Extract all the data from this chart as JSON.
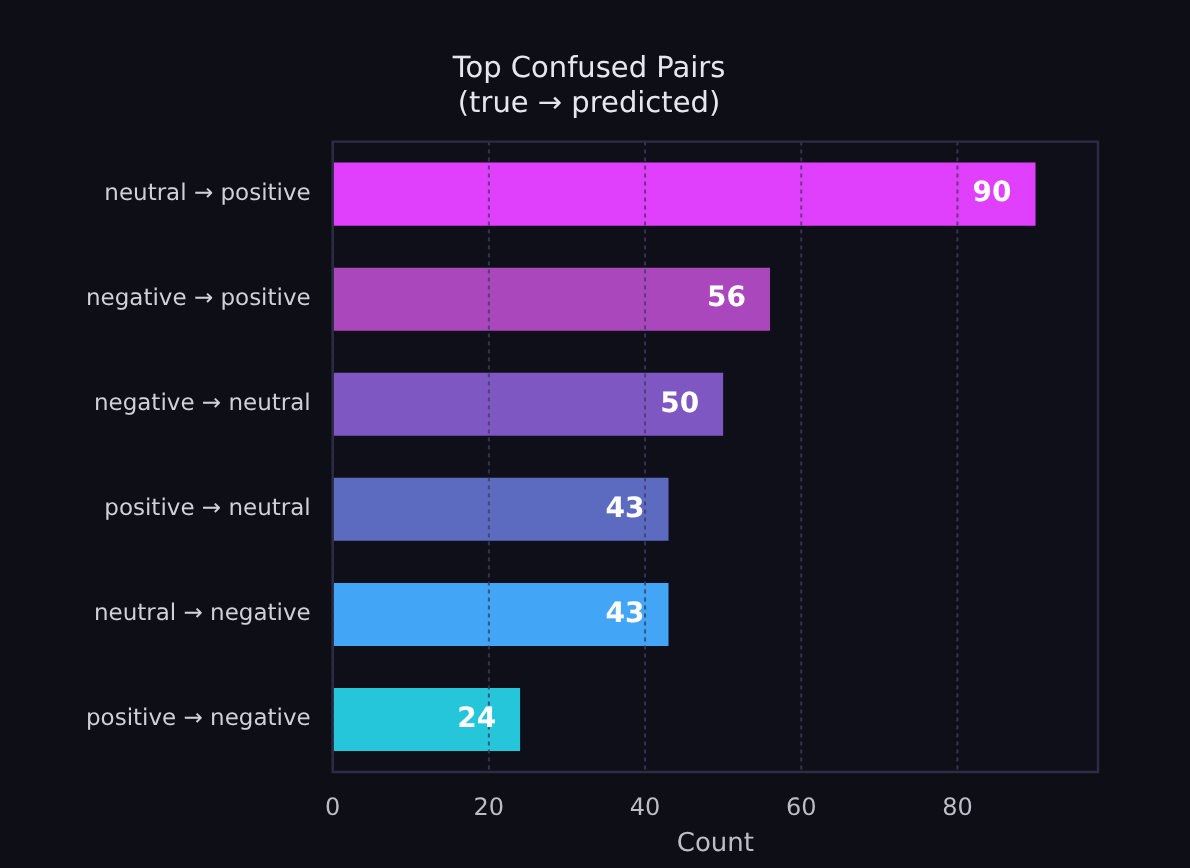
{
  "chart_data": {
    "type": "bar",
    "orientation": "horizontal",
    "title": "Top Confused Pairs\n(true → predicted)",
    "xlabel": "Count",
    "categories": [
      "neutral → positive",
      "negative → positive",
      "negative → neutral",
      "positive → neutral",
      "neutral → negative",
      "positive → negative"
    ],
    "values": [
      90,
      56,
      50,
      43,
      43,
      24
    ],
    "colors": [
      "#e040fb",
      "#ab47bc",
      "#7e57c2",
      "#5c6bc0",
      "#42a5f5",
      "#26c6da"
    ],
    "xlim": [
      0,
      98
    ],
    "xticks": [
      0,
      20,
      40,
      60,
      80
    ],
    "grid": "x",
    "data_labels": true,
    "legend": false
  }
}
